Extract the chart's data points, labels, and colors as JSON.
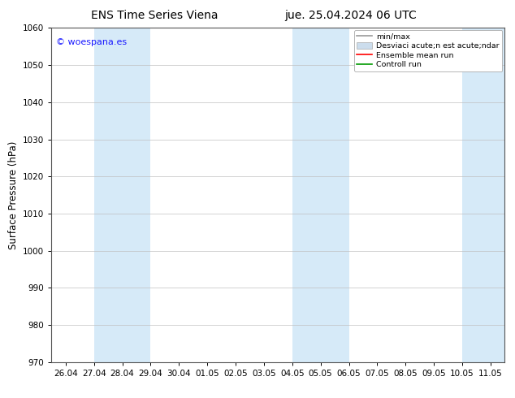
{
  "title_left": "ENS Time Series Viena",
  "title_right": "jue. 25.04.2024 06 UTC",
  "ylabel": "Surface Pressure (hPa)",
  "ylim": [
    970,
    1060
  ],
  "yticks": [
    970,
    980,
    990,
    1000,
    1010,
    1020,
    1030,
    1040,
    1050,
    1060
  ],
  "xtick_labels": [
    "26.04",
    "27.04",
    "28.04",
    "29.04",
    "30.04",
    "01.05",
    "02.05",
    "03.05",
    "04.05",
    "05.05",
    "06.05",
    "07.05",
    "08.05",
    "09.05",
    "10.05",
    "11.05"
  ],
  "xtick_positions": [
    0,
    1,
    2,
    3,
    4,
    5,
    6,
    7,
    8,
    9,
    10,
    11,
    12,
    13,
    14,
    15
  ],
  "xlim_start": -0.5,
  "xlim_end": 15.5,
  "shaded_regions": [
    {
      "xmin": 1,
      "xmax": 3,
      "color": "#d6eaf8"
    },
    {
      "xmin": 8,
      "xmax": 10,
      "color": "#d6eaf8"
    },
    {
      "xmin": 14,
      "xmax": 15.5,
      "color": "#d6eaf8"
    }
  ],
  "watermark": "© woespana.es",
  "watermark_color": "#1a1aff",
  "bg_color": "#ffffff",
  "plot_bg_color": "#ffffff",
  "grid_color": "#c0c0c0",
  "title_fontsize": 10,
  "tick_fontsize": 7.5,
  "ylabel_fontsize": 8.5,
  "legend_labels": [
    "min/max",
    "Desviaci acute;n est acute;ndar",
    "Ensemble mean run",
    "Controll run"
  ],
  "legend_colors": [
    "#999999",
    "#ccdded",
    "#ff0000",
    "#009900"
  ],
  "legend_styles": [
    "line",
    "band",
    "line",
    "line"
  ]
}
